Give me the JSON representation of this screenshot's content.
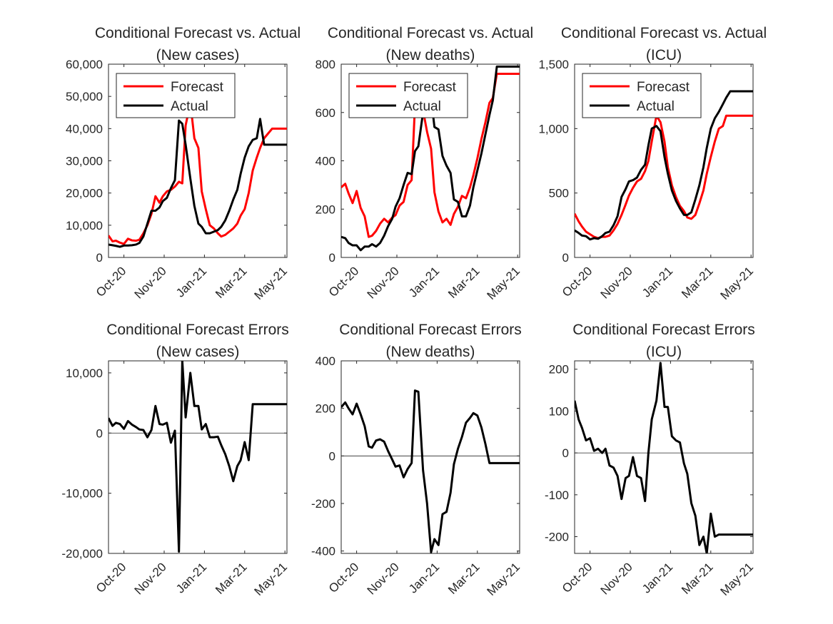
{
  "colors": {
    "forecast": "#ff0000",
    "actual": "#000000",
    "error": "#000000"
  },
  "chart_data": [
    {
      "type": "line",
      "title": [
        "Conditional Forecast vs. Actual",
        "(New cases)"
      ],
      "x_tick_labels": [
        "Oct-20",
        "Nov-20",
        "Jan-21",
        "Mar-21",
        "May-21"
      ],
      "x_tick_dates": [
        "2020-10-01",
        "2020-11-30",
        "2021-01-29",
        "2021-03-30",
        "2021-05-29"
      ],
      "x_range": [
        "2020-09-08",
        "2021-06-01"
      ],
      "ylim": [
        0,
        60000
      ],
      "y_ticks": [
        0,
        10000,
        20000,
        30000,
        40000,
        50000,
        60000
      ],
      "y_tick_labels": [
        "0",
        "10,000",
        "20,000",
        "30,000",
        "40,000",
        "50,000",
        "60,000"
      ],
      "legend": {
        "position": "top-left",
        "entries": [
          "Forecast",
          "Actual"
        ]
      },
      "x": [
        "2020-09-08",
        "2020-09-14",
        "2020-09-19",
        "2020-09-25",
        "2020-10-01",
        "2020-10-07",
        "2020-10-13",
        "2020-10-19",
        "2020-10-24",
        "2020-10-30",
        "2020-11-05",
        "2020-11-11",
        "2020-11-17",
        "2020-11-23",
        "2020-11-28",
        "2020-12-04",
        "2020-12-10",
        "2020-12-16",
        "2020-12-22",
        "2020-12-27",
        "2021-01-01",
        "2021-01-08",
        "2021-01-14",
        "2021-01-20",
        "2021-01-25",
        "2021-01-31",
        "2021-02-06",
        "2021-02-12",
        "2021-02-18",
        "2021-02-23",
        "2021-03-01",
        "2021-03-07",
        "2021-03-13",
        "2021-03-19",
        "2021-03-24",
        "2021-03-30",
        "2021-04-05",
        "2021-04-11",
        "2021-04-17",
        "2021-04-22",
        "2021-04-28",
        "2021-05-04",
        "2021-05-10",
        "2021-05-16",
        "2021-05-21",
        "2021-05-27",
        "2021-06-01"
      ],
      "series": [
        {
          "name": "Forecast",
          "values": [
            6800,
            5000,
            5200,
            4600,
            4200,
            5800,
            5300,
            5200,
            5500,
            7500,
            10000,
            13500,
            19000,
            17000,
            19000,
            20500,
            21000,
            22000,
            23500,
            23000,
            41000,
            48000,
            37000,
            34000,
            20500,
            15000,
            10000,
            9000,
            7500,
            6500,
            7000,
            8000,
            9000,
            10500,
            13000,
            15000,
            20000,
            27000,
            31000,
            34000,
            37000,
            38500,
            40000,
            40000,
            40000,
            40000,
            40000
          ]
        },
        {
          "name": "Actual",
          "values": [
            4000,
            3800,
            3600,
            3300,
            3700,
            3700,
            3800,
            4000,
            4500,
            6500,
            10500,
            14500,
            14500,
            15500,
            17500,
            18500,
            21500,
            24000,
            42500,
            41500,
            35000,
            24500,
            16000,
            10500,
            9500,
            7500,
            7500,
            8000,
            8500,
            9500,
            11500,
            14500,
            18000,
            21000,
            26000,
            31000,
            34500,
            36500,
            37000,
            43000,
            35000,
            35000,
            35000,
            35000,
            35000,
            35000,
            35000
          ]
        }
      ]
    },
    {
      "type": "line",
      "title": [
        "Conditional Forecast vs. Actual",
        "(New deaths)"
      ],
      "x_tick_labels": [
        "Oct-20",
        "Nov-20",
        "Jan-21",
        "Mar-21",
        "May-21"
      ],
      "x_tick_dates": [
        "2020-10-01",
        "2020-11-30",
        "2021-01-29",
        "2021-03-30",
        "2021-05-29"
      ],
      "x_range": [
        "2020-09-08",
        "2021-06-01"
      ],
      "ylim": [
        0,
        800
      ],
      "y_ticks": [
        0,
        200,
        400,
        600,
        800
      ],
      "y_tick_labels": [
        "0",
        "200",
        "400",
        "600",
        "800"
      ],
      "legend": {
        "position": "top-left",
        "entries": [
          "Forecast",
          "Actual"
        ]
      },
      "x": [
        "2020-09-08",
        "2020-09-14",
        "2020-09-19",
        "2020-09-25",
        "2020-10-01",
        "2020-10-07",
        "2020-10-13",
        "2020-10-19",
        "2020-10-24",
        "2020-10-30",
        "2020-11-05",
        "2020-11-11",
        "2020-11-17",
        "2020-11-23",
        "2020-11-28",
        "2020-12-04",
        "2020-12-10",
        "2020-12-16",
        "2020-12-22",
        "2020-12-27",
        "2021-01-01",
        "2021-01-08",
        "2021-01-14",
        "2021-01-20",
        "2021-01-25",
        "2021-01-31",
        "2021-02-06",
        "2021-02-12",
        "2021-02-18",
        "2021-02-23",
        "2021-03-01",
        "2021-03-07",
        "2021-03-13",
        "2021-03-19",
        "2021-03-24",
        "2021-03-30",
        "2021-04-05",
        "2021-04-11",
        "2021-04-17",
        "2021-04-22",
        "2021-04-28",
        "2021-05-04",
        "2021-05-10",
        "2021-05-16",
        "2021-05-21",
        "2021-05-27",
        "2021-06-01"
      ],
      "series": [
        {
          "name": "Forecast",
          "values": [
            290,
            305,
            265,
            225,
            275,
            205,
            170,
            85,
            90,
            110,
            140,
            160,
            145,
            165,
            175,
            215,
            230,
            300,
            320,
            630,
            660,
            610,
            520,
            450,
            270,
            190,
            145,
            160,
            135,
            180,
            210,
            255,
            245,
            290,
            340,
            410,
            490,
            560,
            640,
            660,
            760,
            760,
            760,
            760,
            760,
            760,
            760
          ]
        },
        {
          "name": "Actual",
          "values": [
            85,
            80,
            60,
            50,
            50,
            30,
            45,
            45,
            55,
            45,
            60,
            90,
            130,
            160,
            210,
            245,
            300,
            350,
            345,
            440,
            460,
            600,
            680,
            660,
            540,
            530,
            420,
            380,
            350,
            240,
            230,
            170,
            170,
            215,
            290,
            360,
            430,
            510,
            590,
            650,
            790,
            790,
            790,
            790,
            790,
            790,
            790
          ]
        }
      ]
    },
    {
      "type": "line",
      "title": [
        "Conditional Forecast vs. Actual",
        "(ICU)"
      ],
      "x_tick_labels": [
        "Oct-20",
        "Nov-20",
        "Jan-21",
        "Mar-21",
        "May-21"
      ],
      "x_tick_dates": [
        "2020-10-01",
        "2020-11-30",
        "2021-01-29",
        "2021-03-30",
        "2021-05-29"
      ],
      "x_range": [
        "2020-09-08",
        "2021-06-01"
      ],
      "ylim": [
        0,
        1500
      ],
      "y_ticks": [
        0,
        500,
        1000,
        1500
      ],
      "y_tick_labels": [
        "0",
        "500",
        "1,000",
        "1,500"
      ],
      "legend": {
        "position": "top-left",
        "entries": [
          "Forecast",
          "Actual"
        ]
      },
      "x": [
        "2020-09-08",
        "2020-09-14",
        "2020-09-19",
        "2020-09-25",
        "2020-10-01",
        "2020-10-07",
        "2020-10-13",
        "2020-10-19",
        "2020-10-24",
        "2020-10-30",
        "2020-11-05",
        "2020-11-11",
        "2020-11-17",
        "2020-11-23",
        "2020-11-28",
        "2020-12-04",
        "2020-12-10",
        "2020-12-16",
        "2020-12-22",
        "2020-12-27",
        "2021-01-01",
        "2021-01-08",
        "2021-01-14",
        "2021-01-20",
        "2021-01-25",
        "2021-01-31",
        "2021-02-06",
        "2021-02-12",
        "2021-02-18",
        "2021-02-23",
        "2021-03-01",
        "2021-03-07",
        "2021-03-13",
        "2021-03-19",
        "2021-03-24",
        "2021-03-30",
        "2021-04-05",
        "2021-04-11",
        "2021-04-17",
        "2021-04-22",
        "2021-04-28",
        "2021-05-04",
        "2021-05-10",
        "2021-05-16",
        "2021-05-21",
        "2021-05-27",
        "2021-06-01"
      ],
      "series": [
        {
          "name": "Forecast",
          "values": [
            340,
            280,
            240,
            200,
            180,
            160,
            150,
            160,
            160,
            170,
            210,
            260,
            330,
            410,
            480,
            540,
            590,
            610,
            670,
            750,
            900,
            1100,
            1050,
            900,
            700,
            560,
            470,
            400,
            360,
            310,
            300,
            330,
            420,
            520,
            650,
            780,
            900,
            1000,
            1020,
            1100,
            1100,
            1100,
            1100,
            1100,
            1100,
            1100,
            1100
          ]
        },
        {
          "name": "Actual",
          "values": [
            210,
            190,
            170,
            165,
            140,
            150,
            145,
            165,
            190,
            200,
            250,
            320,
            470,
            530,
            590,
            600,
            620,
            680,
            720,
            870,
            1000,
            1020,
            980,
            780,
            650,
            520,
            440,
            380,
            330,
            330,
            350,
            450,
            560,
            700,
            850,
            1000,
            1080,
            1130,
            1190,
            1240,
            1290,
            1290,
            1290,
            1290,
            1290,
            1290,
            1290
          ]
        }
      ]
    },
    {
      "type": "line",
      "title": [
        "Conditional Forecast Errors",
        "(New cases)"
      ],
      "x_tick_labels": [
        "Oct-20",
        "Nov-20",
        "Jan-21",
        "Mar-21",
        "May-21"
      ],
      "x_tick_dates": [
        "2020-10-01",
        "2020-11-30",
        "2021-01-29",
        "2021-03-30",
        "2021-05-29"
      ],
      "x_range": [
        "2020-09-08",
        "2021-06-01"
      ],
      "ylim": [
        -20000,
        12000
      ],
      "y_ticks": [
        -20000,
        -10000,
        0,
        10000
      ],
      "y_tick_labels": [
        "-20,000",
        "-10,000",
        "0",
        "10,000"
      ],
      "zero_line": true,
      "x": [
        "2020-09-08",
        "2020-09-14",
        "2020-09-19",
        "2020-09-25",
        "2020-10-01",
        "2020-10-07",
        "2020-10-13",
        "2020-10-19",
        "2020-10-24",
        "2020-10-30",
        "2020-11-05",
        "2020-11-11",
        "2020-11-17",
        "2020-11-23",
        "2020-11-28",
        "2020-12-04",
        "2020-12-10",
        "2020-12-16",
        "2020-12-22",
        "2020-12-27",
        "2021-01-01",
        "2021-01-08",
        "2021-01-14",
        "2021-01-20",
        "2021-01-25",
        "2021-01-31",
        "2021-02-06",
        "2021-02-12",
        "2021-02-18",
        "2021-02-23",
        "2021-03-01",
        "2021-03-07",
        "2021-03-13",
        "2021-03-19",
        "2021-03-24",
        "2021-03-30",
        "2021-04-05",
        "2021-04-11",
        "2021-04-17",
        "2021-04-22",
        "2021-04-28",
        "2021-05-04",
        "2021-05-10",
        "2021-05-16",
        "2021-05-21",
        "2021-05-27",
        "2021-06-01"
      ],
      "series": [
        {
          "name": "",
          "values": [
            2500,
            1200,
            1700,
            1500,
            700,
            2000,
            1400,
            1000,
            600,
            500,
            -700,
            500,
            4500,
            1500,
            1400,
            1700,
            -1600,
            400,
            -19700,
            12000,
            2600,
            10000,
            4500,
            4500,
            600,
            1500,
            -700,
            -700,
            -600,
            -2000,
            -3500,
            -5500,
            -8000,
            -5500,
            -4500,
            -1500,
            -4500,
            4800,
            4800,
            4800,
            4800,
            4800,
            4800,
            4800,
            4800,
            4800,
            4800
          ]
        }
      ]
    },
    {
      "type": "line",
      "title": [
        "Conditional Forecast Errors",
        "(New deaths)"
      ],
      "x_tick_labels": [
        "Oct-20",
        "Nov-20",
        "Jan-21",
        "Mar-21",
        "May-21"
      ],
      "x_tick_dates": [
        "2020-10-01",
        "2020-11-30",
        "2021-01-29",
        "2021-03-30",
        "2021-05-29"
      ],
      "x_range": [
        "2020-09-08",
        "2021-06-01"
      ],
      "ylim": [
        -410,
        400
      ],
      "y_ticks": [
        -400,
        -200,
        0,
        200,
        400
      ],
      "y_tick_labels": [
        "-400",
        "-200",
        "0",
        "200",
        "400"
      ],
      "zero_line": true,
      "x": [
        "2020-09-08",
        "2020-09-14",
        "2020-09-19",
        "2020-09-25",
        "2020-10-01",
        "2020-10-07",
        "2020-10-13",
        "2020-10-19",
        "2020-10-24",
        "2020-10-30",
        "2020-11-05",
        "2020-11-11",
        "2020-11-17",
        "2020-11-23",
        "2020-11-28",
        "2020-12-04",
        "2020-12-10",
        "2020-12-16",
        "2020-12-22",
        "2020-12-27",
        "2021-01-01",
        "2021-01-08",
        "2021-01-14",
        "2021-01-20",
        "2021-01-25",
        "2021-01-31",
        "2021-02-06",
        "2021-02-12",
        "2021-02-18",
        "2021-02-23",
        "2021-03-01",
        "2021-03-07",
        "2021-03-13",
        "2021-03-19",
        "2021-03-24",
        "2021-03-30",
        "2021-04-05",
        "2021-04-11",
        "2021-04-17",
        "2021-04-22",
        "2021-04-28",
        "2021-05-04",
        "2021-05-10",
        "2021-05-16",
        "2021-05-21",
        "2021-05-27",
        "2021-06-01"
      ],
      "series": [
        {
          "name": "",
          "values": [
            205,
            225,
            200,
            175,
            220,
            175,
            125,
            40,
            35,
            65,
            70,
            60,
            20,
            -15,
            -45,
            -40,
            -90,
            -55,
            -30,
            275,
            270,
            -60,
            -200,
            -405,
            -350,
            -375,
            -245,
            -235,
            -155,
            -35,
            30,
            80,
            140,
            160,
            180,
            170,
            120,
            50,
            -30,
            -30,
            -30,
            -30,
            -30,
            -30,
            -30,
            -30,
            -30
          ]
        }
      ]
    },
    {
      "type": "line",
      "title": [
        "Conditional Forecast Errors",
        "(ICU)"
      ],
      "x_tick_labels": [
        "Oct-20",
        "Nov-20",
        "Jan-21",
        "Mar-21",
        "May-21"
      ],
      "x_tick_dates": [
        "2020-10-01",
        "2020-11-30",
        "2021-01-29",
        "2021-03-30",
        "2021-05-29"
      ],
      "x_range": [
        "2020-09-08",
        "2021-06-01"
      ],
      "ylim": [
        -240,
        220
      ],
      "y_ticks": [
        -200,
        -100,
        0,
        100,
        200
      ],
      "y_tick_labels": [
        "-200",
        "-100",
        "0",
        "100",
        "200"
      ],
      "zero_line": true,
      "x": [
        "2020-09-08",
        "2020-09-14",
        "2020-09-19",
        "2020-09-25",
        "2020-10-01",
        "2020-10-07",
        "2020-10-13",
        "2020-10-19",
        "2020-10-24",
        "2020-10-30",
        "2020-11-05",
        "2020-11-11",
        "2020-11-17",
        "2020-11-23",
        "2020-11-28",
        "2020-12-04",
        "2020-12-10",
        "2020-12-16",
        "2020-12-22",
        "2020-12-27",
        "2021-01-01",
        "2021-01-08",
        "2021-01-14",
        "2021-01-20",
        "2021-01-25",
        "2021-01-31",
        "2021-02-06",
        "2021-02-12",
        "2021-02-18",
        "2021-02-23",
        "2021-03-01",
        "2021-03-07",
        "2021-03-13",
        "2021-03-19",
        "2021-03-24",
        "2021-03-30",
        "2021-04-05",
        "2021-04-11",
        "2021-04-17",
        "2021-04-22",
        "2021-04-28",
        "2021-05-04",
        "2021-05-10",
        "2021-05-16",
        "2021-05-21",
        "2021-05-27",
        "2021-06-01"
      ],
      "series": [
        {
          "name": "",
          "values": [
            125,
            80,
            60,
            30,
            35,
            5,
            10,
            0,
            10,
            -30,
            -35,
            -55,
            -110,
            -60,
            -55,
            -10,
            -55,
            -60,
            -115,
            0,
            80,
            125,
            215,
            110,
            110,
            40,
            30,
            25,
            -25,
            -50,
            -120,
            -150,
            -220,
            -200,
            -240,
            -145,
            -200,
            -195,
            -195,
            -195,
            -195,
            -195,
            -195,
            -195,
            -195,
            -195,
            -195
          ]
        }
      ]
    }
  ]
}
